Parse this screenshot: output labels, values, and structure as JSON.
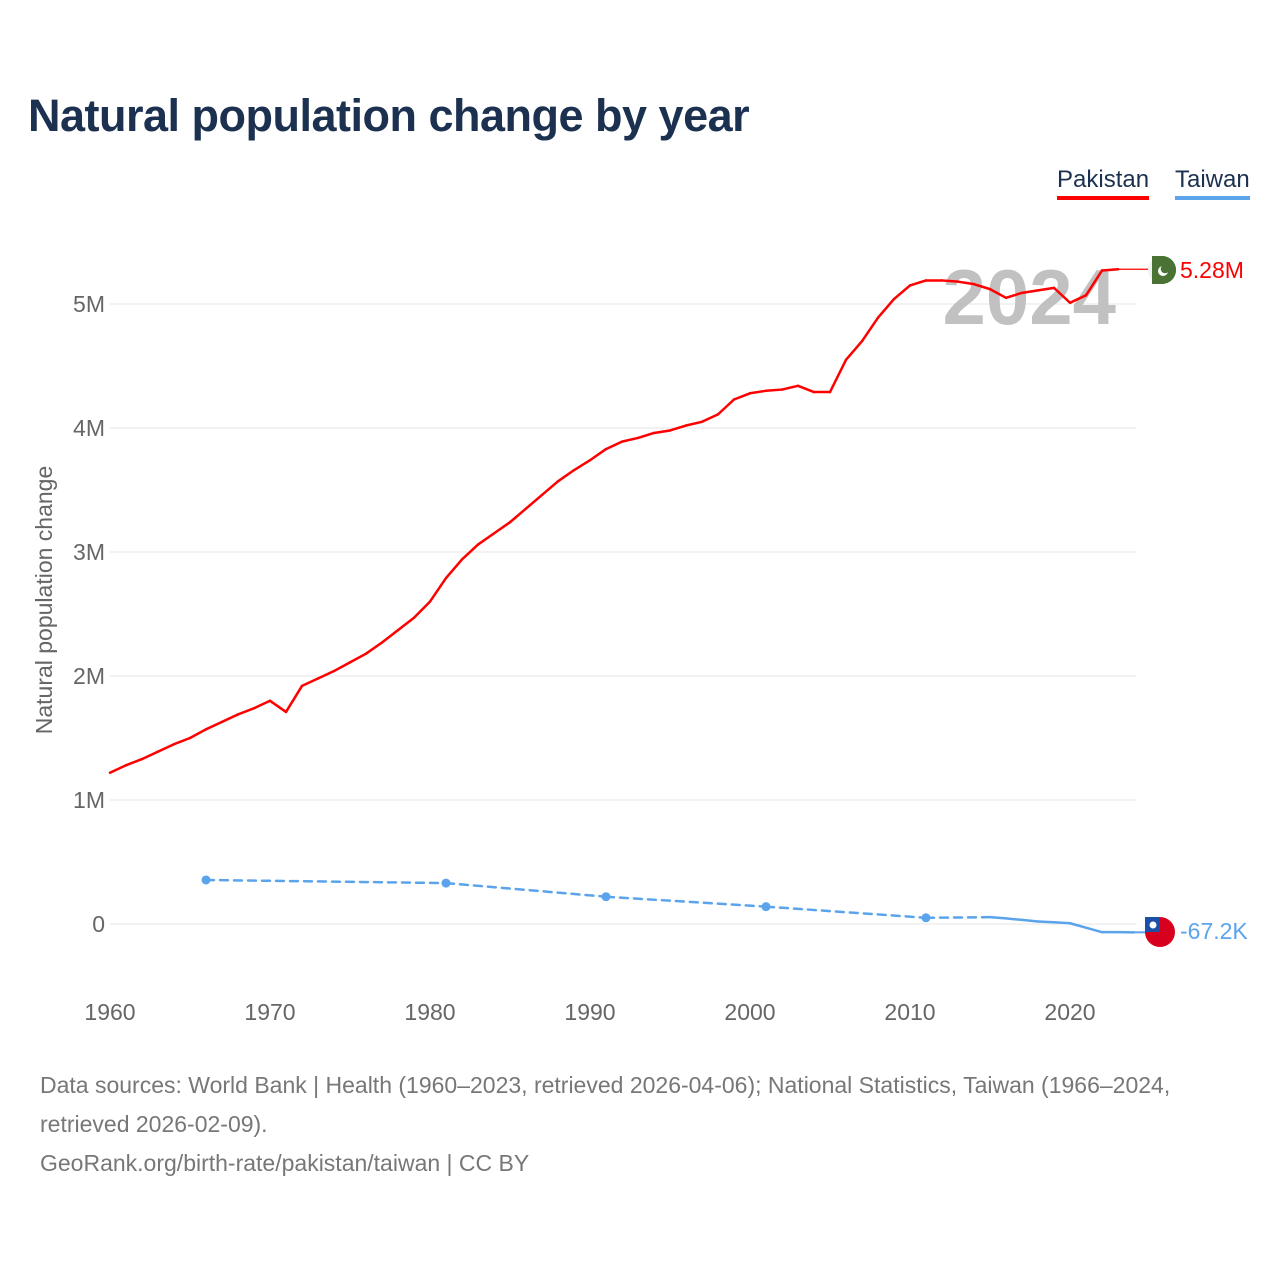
{
  "title": "Natural population change by year",
  "legend": [
    "Pakistan",
    "Taiwan"
  ],
  "footer": {
    "sources": "Data sources: World Bank | Health (1960–2023, retrieved 2026-04-06); National Statistics, Taiwan (1966–2024, retrieved 2026-02-09).",
    "attribution": "GeoRank.org/birth-rate/pakistan/taiwan | CC BY"
  },
  "chart_data": {
    "type": "line",
    "title": "Natural population change by year",
    "xlabel": "",
    "ylabel": "Natural population change",
    "xlim": [
      1960,
      2024
    ],
    "ylim": [
      -0.5,
      5.5
    ],
    "x_ticks": [
      "1960",
      "1970",
      "1980",
      "1990",
      "2000",
      "2010",
      "2020"
    ],
    "y_ticks": [
      {
        "v": 0,
        "label": "0"
      },
      {
        "v": 1,
        "label": "1M"
      },
      {
        "v": 2,
        "label": "2M"
      },
      {
        "v": 3,
        "label": "3M"
      },
      {
        "v": 4,
        "label": "4M"
      },
      {
        "v": 5,
        "label": "5M"
      }
    ],
    "year_watermark": "2024",
    "grid": true,
    "legend_position": "top-right",
    "series": [
      {
        "name": "Pakistan",
        "color": "#ff0000",
        "end_label": "5.28M",
        "flag": "pakistan-flag",
        "x": [
          1960,
          1961,
          1962,
          1963,
          1964,
          1965,
          1966,
          1967,
          1968,
          1969,
          1970,
          1971,
          1972,
          1973,
          1974,
          1975,
          1976,
          1977,
          1978,
          1979,
          1980,
          1981,
          1982,
          1983,
          1984,
          1985,
          1986,
          1987,
          1988,
          1989,
          1990,
          1991,
          1992,
          1993,
          1994,
          1995,
          1996,
          1997,
          1998,
          1999,
          2000,
          2001,
          2002,
          2003,
          2004,
          2005,
          2006,
          2007,
          2008,
          2009,
          2010,
          2011,
          2012,
          2013,
          2014,
          2015,
          2016,
          2017,
          2018,
          2019,
          2020,
          2021,
          2022,
          2023
        ],
        "values": [
          1.22,
          1.28,
          1.33,
          1.39,
          1.45,
          1.5,
          1.57,
          1.63,
          1.69,
          1.74,
          1.8,
          1.71,
          1.92,
          1.98,
          2.04,
          2.11,
          2.18,
          2.27,
          2.37,
          2.47,
          2.6,
          2.79,
          2.94,
          3.06,
          3.15,
          3.24,
          3.35,
          3.46,
          3.57,
          3.66,
          3.74,
          3.83,
          3.89,
          3.92,
          3.96,
          3.98,
          4.02,
          4.05,
          4.11,
          4.23,
          4.28,
          4.3,
          4.31,
          4.34,
          4.29,
          4.29,
          4.55,
          4.7,
          4.89,
          5.04,
          5.15,
          5.19,
          5.19,
          5.18,
          5.16,
          5.12,
          5.05,
          5.09,
          5.11,
          5.13,
          5.01,
          5.07,
          5.27,
          5.28
        ]
      },
      {
        "name": "Taiwan",
        "color": "#5ba4ec",
        "end_label": "-67.2K",
        "flag": "taiwan-flag",
        "x": [
          1966,
          1981,
          1991,
          2001,
          2011,
          2015,
          2016,
          2017,
          2018,
          2019,
          2020,
          2021,
          2022,
          2023,
          2024
        ],
        "values": [
          0.355,
          0.33,
          0.22,
          0.14,
          0.05,
          0.055,
          0.045,
          0.033,
          0.02,
          0.014,
          0.006,
          -0.03,
          -0.066,
          -0.066,
          -0.0672
        ]
      }
    ]
  }
}
